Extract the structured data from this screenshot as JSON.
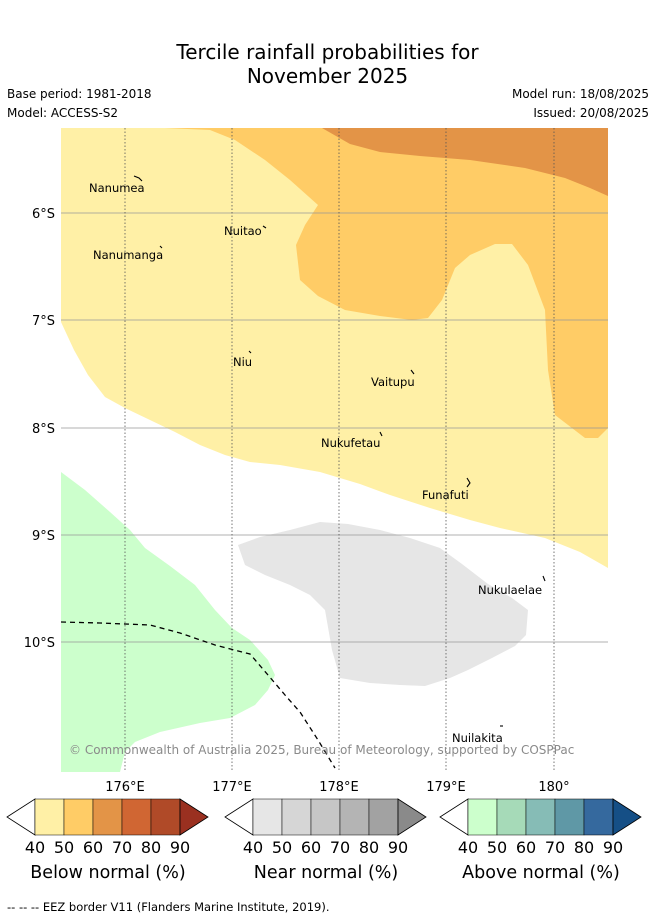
{
  "title_line1": "Tercile rainfall probabilities for",
  "title_line2": "November 2025",
  "base_period": "Base period: 1981-2018",
  "model": "Model: ACCESS-S2",
  "model_run": "Model run: 18/08/2025",
  "issued": "Issued: 20/08/2025",
  "copyright": "© Commonwealth of Australia 2025, Bureau of Meteorology, supported by COSPPac",
  "lat_labels": [
    "6°S",
    "7°S",
    "8°S",
    "9°S",
    "10°S"
  ],
  "lon_labels": [
    "176°E",
    "177°E",
    "178°E",
    "179°E",
    "180°"
  ],
  "places": [
    "Nanumea",
    "Nuitao",
    "Nanumanga",
    "Niu",
    "Vaitupu",
    "Nukufetau",
    "Funafuti",
    "Nukulaelae",
    "Nuilakita"
  ],
  "colorbars": [
    {
      "label": "Below normal (%)",
      "ticks": [
        "40",
        "50",
        "60",
        "70",
        "80",
        "90"
      ],
      "colors": [
        "#ffffff",
        "#fff0a6",
        "#ffcc66",
        "#e39447",
        "#d06633",
        "#b04a28",
        "#9a3020"
      ]
    },
    {
      "label": "Near normal (%)",
      "ticks": [
        "40",
        "50",
        "60",
        "70",
        "80",
        "90"
      ],
      "colors": [
        "#ffffff",
        "#e6e6e6",
        "#d6d6d6",
        "#c6c6c6",
        "#b4b4b4",
        "#a2a2a2",
        "#8a8a8a"
      ]
    },
    {
      "label": "Above normal (%)",
      "ticks": [
        "40",
        "50",
        "60",
        "70",
        "80",
        "90"
      ],
      "colors": [
        "#ffffff",
        "#ccffcc",
        "#a6dab8",
        "#86bcb6",
        "#5f98a6",
        "#35699e",
        "#154f86"
      ]
    }
  ],
  "footer": "--  --  -- EEZ border V11 (Flanders Marine Institute, 2019)."
}
